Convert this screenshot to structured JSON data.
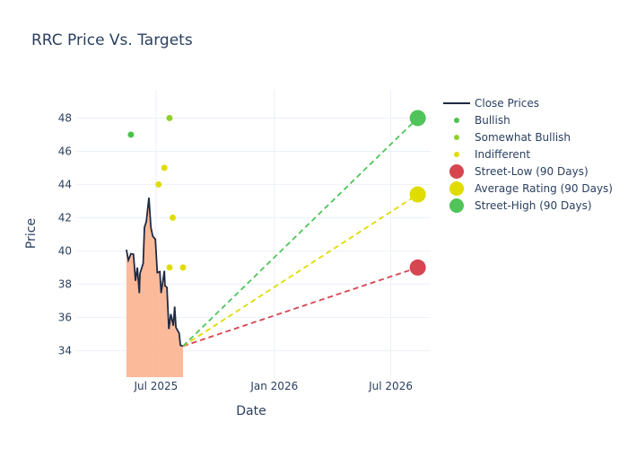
{
  "chart_data": {
    "type": "line",
    "title": "RRC Price Vs. Targets",
    "xlabel": "Date",
    "ylabel": "Price",
    "xlim": [
      "2025-02-27",
      "2026-09-01"
    ],
    "ylim": [
      32.4,
      49.7
    ],
    "x_ticks": [
      {
        "date": "2025-07-01",
        "label": "Jul 2025"
      },
      {
        "date": "2026-01-01",
        "label": "Jan 2026"
      },
      {
        "date": "2026-07-01",
        "label": "Jul 2026"
      }
    ],
    "y_ticks": [
      34,
      36,
      38,
      40,
      42,
      44,
      46,
      48
    ],
    "grid": true,
    "legend_placement": "right",
    "colors": {
      "price_line": "#1f2a44",
      "price_fill": "#fbb48f",
      "bullish": "#4cc24c",
      "somewhat_bullish": "#8fd12a",
      "indifferent": "#e0dc00",
      "street_low": "#d64550",
      "average": "#e0dc00",
      "street_high": "#50c45a"
    },
    "close_prices": {
      "name": "Close Prices",
      "x": [
        "2025-05-16",
        "2025-05-19",
        "2025-05-23",
        "2025-05-27",
        "2025-05-30",
        "2025-06-02",
        "2025-06-05",
        "2025-06-06",
        "2025-06-11",
        "2025-06-13",
        "2025-06-16",
        "2025-06-20",
        "2025-06-23",
        "2025-06-26",
        "2025-06-30",
        "2025-07-03",
        "2025-07-07",
        "2025-07-09",
        "2025-07-14",
        "2025-07-15",
        "2025-07-18",
        "2025-07-21",
        "2025-07-24",
        "2025-07-28",
        "2025-07-30",
        "2025-08-01",
        "2025-08-06",
        "2025-08-08",
        "2025-08-12"
      ],
      "y": [
        40.07,
        39.44,
        39.83,
        39.8,
        38.2,
        39.0,
        37.46,
        38.63,
        39.26,
        41.41,
        41.77,
        43.2,
        41.41,
        40.88,
        40.7,
        38.7,
        38.75,
        37.46,
        38.8,
        37.9,
        37.8,
        35.3,
        36.2,
        35.5,
        36.65,
        35.4,
        35.04,
        34.32,
        34.27
      ]
    },
    "ratings": [
      {
        "name": "Bullish",
        "points": [
          {
            "x": "2025-05-23",
            "y": 47
          }
        ]
      },
      {
        "name": "Somewhat Bullish",
        "points": [
          {
            "x": "2025-07-22",
            "y": 48
          }
        ]
      },
      {
        "name": "Indifferent",
        "points": [
          {
            "x": "2025-07-05",
            "y": 44
          },
          {
            "x": "2025-07-14",
            "y": 45
          },
          {
            "x": "2025-07-27",
            "y": 42
          },
          {
            "x": "2025-07-22",
            "y": 39
          },
          {
            "x": "2025-08-12",
            "y": 39
          }
        ]
      }
    ],
    "targets": [
      {
        "name": "Street-Low (90 Days)",
        "x": "2026-08-12",
        "y": 39.0
      },
      {
        "name": "Average Rating (90 Days)",
        "x": "2026-08-12",
        "y": 43.4
      },
      {
        "name": "Street-High (90 Days)",
        "x": "2026-08-12",
        "y": 48.0
      }
    ]
  }
}
